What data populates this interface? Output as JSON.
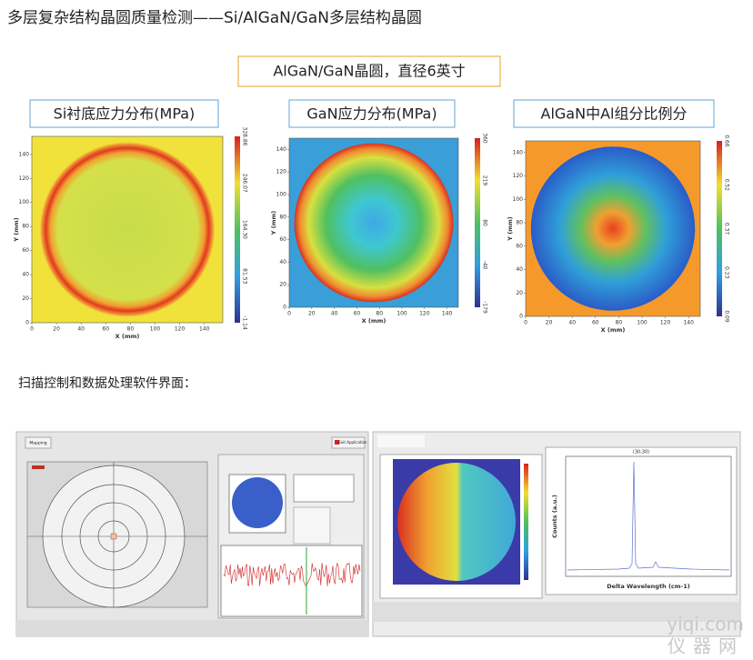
{
  "title": "多层复杂结构晶圆质量检测——Si/AlGaN/GaN多层结构晶圆",
  "wafer_label": "AlGaN/GaN晶圆，直径6英寸",
  "maps": [
    {
      "label": "Si衬底应力分布(MPa)",
      "x_label": "X (mm)",
      "y_label": "Y (mm)",
      "x_ticks": [
        0,
        20,
        40,
        60,
        80,
        100,
        120,
        140
      ],
      "y_ticks": [
        0,
        20,
        40,
        60,
        80,
        100,
        120,
        140
      ],
      "colorbar_ticks": [
        "-1.14",
        "81.53",
        "164.30",
        "246.07",
        "328.86"
      ]
    },
    {
      "label": "GaN应力分布(MPa)",
      "x_label": "X (mm)",
      "y_label": "Y (mm)",
      "x_ticks": [
        0,
        20,
        40,
        60,
        80,
        100,
        120,
        140
      ],
      "y_ticks": [
        0,
        20,
        40,
        60,
        80,
        100,
        120,
        140
      ],
      "colorbar_ticks": [
        "-179",
        "-40",
        "80",
        "219",
        "360"
      ]
    },
    {
      "label": "AlGaN中Al组分比例分",
      "x_label": "X (mm)",
      "y_label": "Y (mm)",
      "x_ticks": [
        0,
        20,
        40,
        60,
        80,
        100,
        120,
        140
      ],
      "y_ticks": [
        0,
        20,
        40,
        60,
        80,
        100,
        120,
        140
      ],
      "colorbar_ticks": [
        "0.09",
        "0.23",
        "0.37",
        "0.52",
        "0.66"
      ]
    }
  ],
  "software_label": "扫描控制和数据处理软件界面：",
  "software": {
    "mapping_button": "Mapping",
    "exit_button": "Exit Application",
    "spectrum_title": "(30,30)",
    "spectrum_x_label": "Delta Wavelength (cm-1)",
    "spectrum_y_label": "Counts (a.u.)"
  },
  "watermark": {
    "site": "yiqi.com",
    "name": "仪器网"
  }
}
